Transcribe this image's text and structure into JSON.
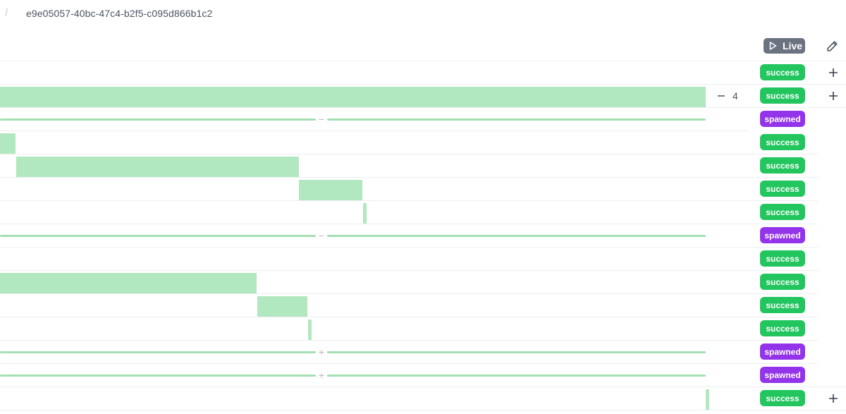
{
  "breadcrumb": {
    "separator": "/",
    "run_id": "e9e05057-40bc-47c4-b2f5-c095d866b1c2"
  },
  "toolbar": {
    "live_label": "Live",
    "live_icon": "play-icon",
    "edit_icon": "pencil-icon"
  },
  "colors": {
    "success": "#22c55e",
    "spawned": "#9333ea",
    "bar": "#b2e8c0",
    "live_button": "#6b7280"
  },
  "rows": [
    {
      "status": "success",
      "plus": true
    },
    {
      "status": "success",
      "plus": true,
      "collapse_count": "4"
    },
    {
      "status": "spawned",
      "marker": "−"
    },
    {
      "status": "success"
    },
    {
      "status": "success"
    },
    {
      "status": "success"
    },
    {
      "status": "success"
    },
    {
      "status": "spawned",
      "marker": "−"
    },
    {
      "status": "success"
    },
    {
      "status": "success"
    },
    {
      "status": "success"
    },
    {
      "status": "success"
    },
    {
      "status": "spawned",
      "marker": "+"
    },
    {
      "status": "spawned",
      "marker": "+"
    },
    {
      "status": "success",
      "plus": true
    }
  ]
}
